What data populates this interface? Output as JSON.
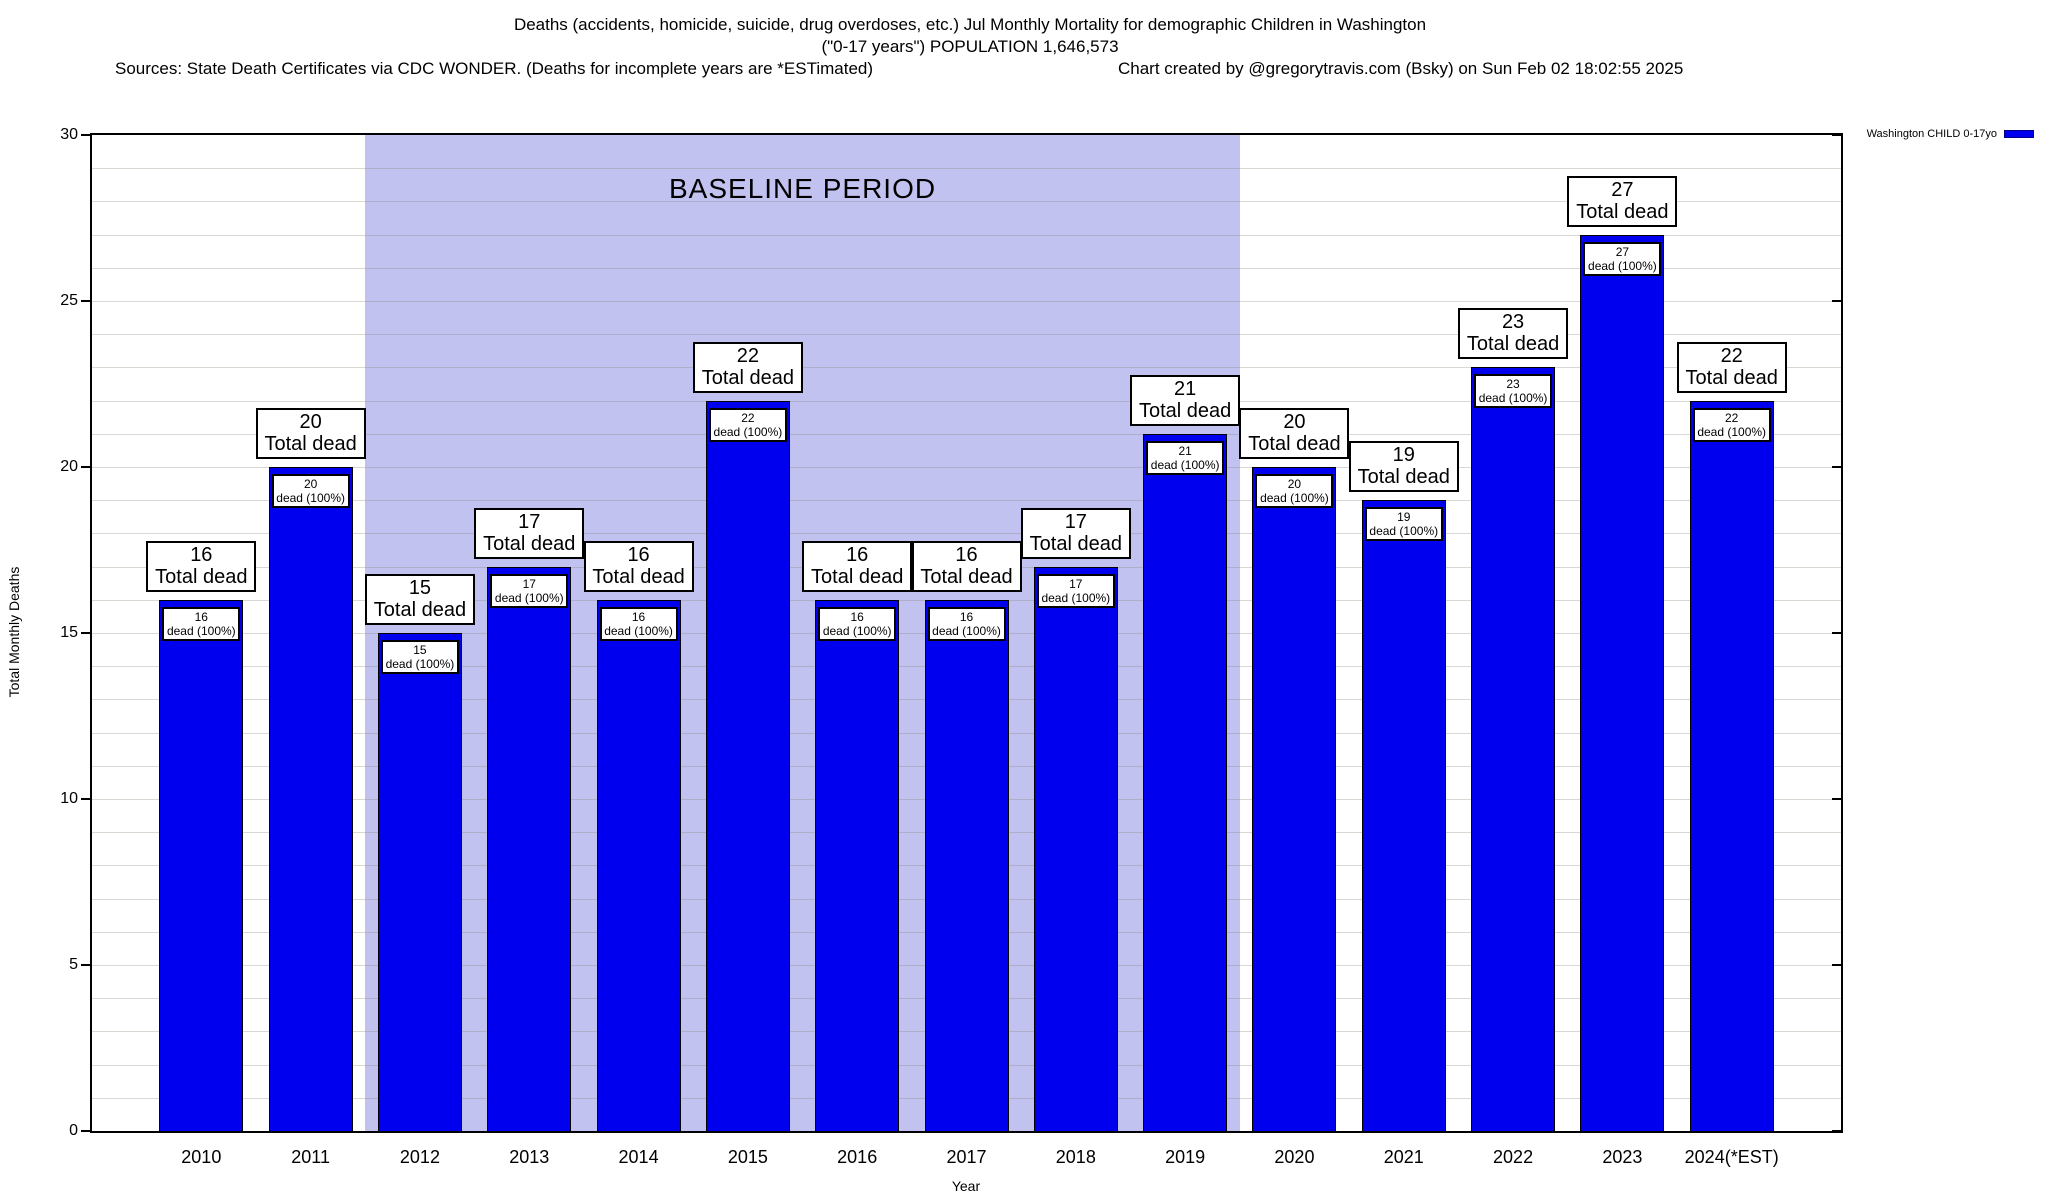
{
  "header": {
    "title_line1": "Deaths (accidents, homicide, suicide, drug overdoses, etc.) Jul Monthly Mortality for demographic Children in Washington",
    "title_line2": "(\"0-17 years\") POPULATION 1,646,573",
    "sources_note": "Sources: State Death Certificates via CDC WONDER. (Deaths for incomplete years are *ESTimated)",
    "credit": "Chart created by @gregorytravis.com (Bsky) on Sun Feb 02 18:02:55 2025"
  },
  "legend": {
    "label": "Washington CHILD 0-17yo",
    "swatch_color": "#0000ee",
    "position": "top-right"
  },
  "chart_data": {
    "type": "bar",
    "title": "Deaths (accidents, homicide, suicide, drug overdoses, etc.) Jul Monthly Mortality for demographic Children in Washington",
    "xlabel": "Year",
    "ylabel": "Total Monthly Deaths",
    "ylim": [
      0,
      30
    ],
    "ytick_step": 5,
    "grid_step": 1,
    "grid": true,
    "categories": [
      "2010",
      "2011",
      "2012",
      "2013",
      "2014",
      "2015",
      "2016",
      "2017",
      "2018",
      "2019",
      "2020",
      "2021",
      "2022",
      "2023",
      "2024(*EST)"
    ],
    "series": [
      {
        "name": "Washington CHILD 0-17yo",
        "values": [
          16,
          20,
          15,
          17,
          16,
          22,
          16,
          16,
          17,
          21,
          20,
          19,
          23,
          27,
          22
        ],
        "color": "#0000ee"
      }
    ],
    "bar_annotation_top_suffix": "Total dead",
    "bar_annotation_inner_suffix": "dead (100%)",
    "baseline_region": {
      "label": "BASELINE PERIOD",
      "start_category": "2012",
      "end_category": "2019",
      "color": "#c2c2f0"
    },
    "legend_position": "top-right"
  }
}
